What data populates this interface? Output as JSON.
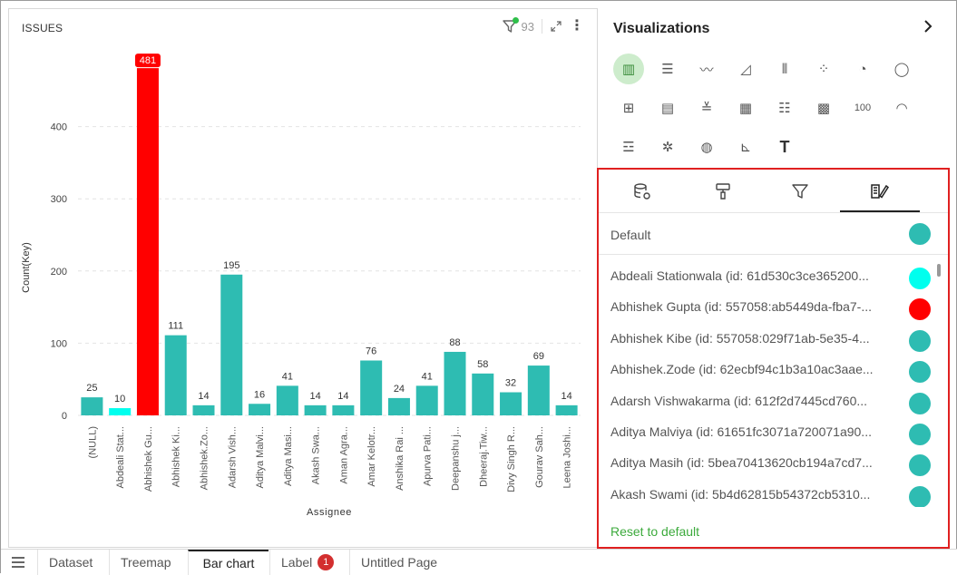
{
  "chart_panel": {
    "title": "ISSUES",
    "filter_count": "93"
  },
  "chart_data": {
    "type": "bar",
    "xlabel": "Assignee",
    "ylabel": "Count(Key)",
    "ylim": [
      0,
      500
    ],
    "yticks": [
      0,
      100,
      200,
      300,
      400
    ],
    "grid": "dashed horizontal",
    "categories": [
      "(NULL)",
      "Abdeali Stat...",
      "Abhishek Gu...",
      "Abhishek Ki...",
      "Abhishek.Zo...",
      "Adarsh Vish...",
      "Aditya Malvi...",
      "Aditya Masi...",
      "Akash Swa...",
      "Aman Agra...",
      "Amar Kelotr...",
      "Anshika Rai ...",
      "Apurva Pati...",
      "Deepanshu j...",
      "Dheeraj.Tiw...",
      "Divy Singh R...",
      "Gourav Sah...",
      "Leena Joshi..."
    ],
    "values": [
      25,
      10,
      481,
      111,
      14,
      195,
      16,
      41,
      14,
      14,
      76,
      24,
      41,
      88,
      58,
      32,
      69,
      14
    ],
    "colors": [
      "#2ebcb2",
      "#00ffee",
      "#ff0000",
      "#2ebcb2",
      "#2ebcb2",
      "#2ebcb2",
      "#2ebcb2",
      "#2ebcb2",
      "#2ebcb2",
      "#2ebcb2",
      "#2ebcb2",
      "#2ebcb2",
      "#2ebcb2",
      "#2ebcb2",
      "#2ebcb2",
      "#2ebcb2",
      "#2ebcb2",
      "#2ebcb2"
    ],
    "highlight_label_index": 2
  },
  "visualizations": {
    "title": "Visualizations",
    "icons": [
      {
        "name": "bar-chart-icon",
        "glyph": "▥",
        "active": true
      },
      {
        "name": "horizontal-bar-icon",
        "glyph": "☰"
      },
      {
        "name": "line-chart-icon",
        "glyph": "〰"
      },
      {
        "name": "area-chart-icon",
        "glyph": "◿"
      },
      {
        "name": "combo-chart-icon",
        "glyph": "⫴"
      },
      {
        "name": "scatter-chart-icon",
        "glyph": "⁘"
      },
      {
        "name": "pie-chart-icon",
        "glyph": "◔"
      },
      {
        "name": "donut-chart-icon",
        "glyph": "◯"
      },
      {
        "name": "pivot-table-icon",
        "glyph": "⊞"
      },
      {
        "name": "list-view-icon",
        "glyph": "▤"
      },
      {
        "name": "filter-list-icon",
        "glyph": "≚"
      },
      {
        "name": "table-icon",
        "glyph": "▦"
      },
      {
        "name": "detail-table-icon",
        "glyph": "☷"
      },
      {
        "name": "card-grid-icon",
        "glyph": "▩"
      },
      {
        "name": "number-kpi-icon",
        "glyph": "100"
      },
      {
        "name": "gauge-icon",
        "glyph": "◠"
      },
      {
        "name": "funnel-list-icon",
        "glyph": "☲"
      },
      {
        "name": "network-icon",
        "glyph": "✲"
      },
      {
        "name": "globe-map-icon",
        "glyph": "◍"
      },
      {
        "name": "stacked-chart-icon",
        "glyph": "⊾"
      },
      {
        "name": "text-icon",
        "glyph": "T"
      }
    ]
  },
  "format_panel": {
    "tabs": [
      {
        "name": "tab-data",
        "glyph": "⛁"
      },
      {
        "name": "tab-format",
        "glyph": "🖌"
      },
      {
        "name": "tab-filter",
        "glyph": "▽"
      },
      {
        "name": "tab-colors",
        "glyph": "✎"
      }
    ],
    "default_label": "Default",
    "default_color": "#2ebcb2",
    "items": [
      {
        "label": "Abdeali Stationwala (id: 61d530c3ce365200...",
        "color": "#00ffee"
      },
      {
        "label": "Abhishek Gupta (id: 557058:ab5449da-fba7-...",
        "color": "#ff0000"
      },
      {
        "label": "Abhishek Kibe (id: 557058:029f71ab-5e35-4...",
        "color": "#2ebcb2"
      },
      {
        "label": "Abhishek.Zode (id: 62ecbf94c1b3a10ac3aae...",
        "color": "#2ebcb2"
      },
      {
        "label": "Adarsh Vishwakarma (id: 612f2d7445cd760...",
        "color": "#2ebcb2"
      },
      {
        "label": "Aditya Malviya (id: 61651fc3071a720071a90...",
        "color": "#2ebcb2"
      },
      {
        "label": "Aditya Masih (id: 5bea70413620cb194a7cd7...",
        "color": "#2ebcb2"
      },
      {
        "label": "Akash Swami (id: 5b4d62815b54372cb5310...",
        "color": "#2ebcb2"
      }
    ],
    "reset_label": "Reset to default"
  },
  "bottom_tabs": {
    "tabs": [
      "Dataset",
      "Treemap",
      "Bar chart",
      "Label",
      "Untitled Page"
    ],
    "active": "Bar chart",
    "label_badge": "1"
  }
}
